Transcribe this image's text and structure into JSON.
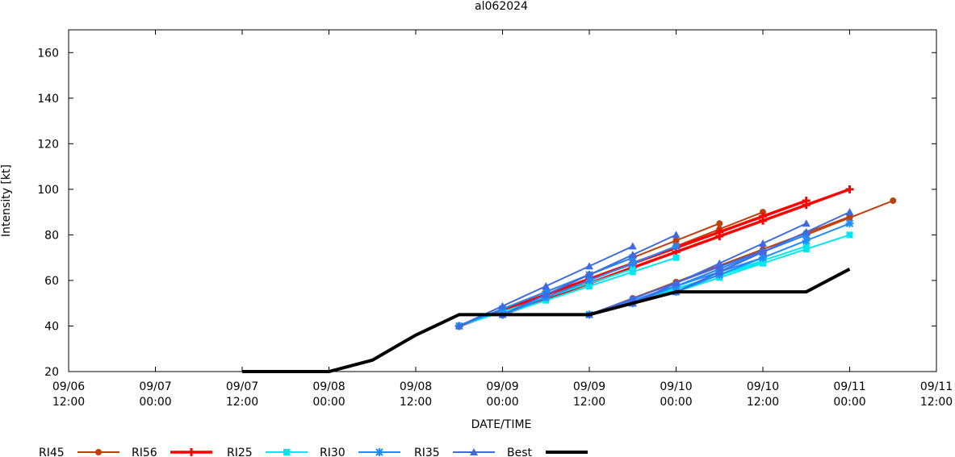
{
  "chart_data": {
    "type": "line",
    "title": "al062024",
    "xlabel": "DATE/TIME",
    "ylabel": "Intensity [kt]",
    "xlim": [
      "09/06 12:00",
      "09/11 12:00"
    ],
    "ylim": [
      20,
      170
    ],
    "yticks": [
      20,
      40,
      60,
      80,
      100,
      120,
      140,
      160
    ],
    "xticks": [
      {
        "date": "09/06",
        "time": "12:00"
      },
      {
        "date": "09/07",
        "time": "00:00"
      },
      {
        "date": "09/07",
        "time": "12:00"
      },
      {
        "date": "09/08",
        "time": "00:00"
      },
      {
        "date": "09/08",
        "time": "12:00"
      },
      {
        "date": "09/09",
        "time": "00:00"
      },
      {
        "date": "09/09",
        "time": "12:00"
      },
      {
        "date": "09/10",
        "time": "00:00"
      },
      {
        "date": "09/10",
        "time": "12:00"
      },
      {
        "date": "09/11",
        "time": "00:00"
      },
      {
        "date": "09/11",
        "time": "12:00"
      }
    ],
    "legend_position": "bottom",
    "series": [
      {
        "name": "RI45",
        "color": "#c0400a",
        "marker": "circle",
        "forecasts": [
          {
            "x": [
              "09/08 18:00",
              "09/10 06:00"
            ],
            "y": [
              40,
              85
            ]
          },
          {
            "x": [
              "09/09 00:00",
              "09/10 12:00"
            ],
            "y": [
              45,
              90
            ]
          },
          {
            "x": [
              "09/09 12:00",
              "09/11 00:00"
            ],
            "y": [
              45,
              88
            ]
          },
          {
            "x": [
              "09/09 18:00",
              "09/11 06:00"
            ],
            "y": [
              50,
              95
            ]
          }
        ]
      },
      {
        "name": "RI56",
        "color": "#ff0000",
        "marker": "plus",
        "forecasts": [
          {
            "x": [
              "09/08 18:00",
              "09/10 18:00"
            ],
            "y": [
              40,
              95
            ]
          },
          {
            "x": [
              "09/09 00:00",
              "09/11 00:00"
            ],
            "y": [
              45,
              100
            ]
          }
        ]
      },
      {
        "name": "RI25",
        "color": "#00e8ee",
        "marker": "square",
        "forecasts": [
          {
            "x": [
              "09/08 18:00",
              "09/09 18:00"
            ],
            "y": [
              40,
              65
            ]
          },
          {
            "x": [
              "09/09 00:00",
              "09/10 00:00"
            ],
            "y": [
              45,
              70
            ]
          },
          {
            "x": [
              "09/09 12:00",
              "09/10 12:00"
            ],
            "y": [
              45,
              68
            ]
          },
          {
            "x": [
              "09/09 18:00",
              "09/10 18:00"
            ],
            "y": [
              50,
              75
            ]
          },
          {
            "x": [
              "09/10 00:00",
              "09/11 00:00"
            ],
            "y": [
              55,
              80
            ]
          }
        ]
      },
      {
        "name": "RI30",
        "color": "#1e8cff",
        "marker": "star",
        "forecasts": [
          {
            "x": [
              "09/08 18:00",
              "09/09 18:00"
            ],
            "y": [
              40,
              70
            ]
          },
          {
            "x": [
              "09/09 00:00",
              "09/10 00:00"
            ],
            "y": [
              45,
              75
            ]
          },
          {
            "x": [
              "09/09 12:00",
              "09/10 12:00"
            ],
            "y": [
              45,
              70
            ]
          },
          {
            "x": [
              "09/09 18:00",
              "09/10 18:00"
            ],
            "y": [
              50,
              80
            ]
          },
          {
            "x": [
              "09/10 00:00",
              "09/11 00:00"
            ],
            "y": [
              55,
              85
            ]
          }
        ]
      },
      {
        "name": "RI35",
        "color": "#4169e1",
        "marker": "triangle",
        "forecasts": [
          {
            "x": [
              "09/08 18:00",
              "09/09 18:00"
            ],
            "y": [
              40,
              75
            ]
          },
          {
            "x": [
              "09/09 00:00",
              "09/10 00:00"
            ],
            "y": [
              45,
              80
            ]
          },
          {
            "x": [
              "09/09 12:00",
              "09/10 12:00"
            ],
            "y": [
              45,
              73
            ]
          },
          {
            "x": [
              "09/09 18:00",
              "09/10 18:00"
            ],
            "y": [
              50,
              85
            ]
          },
          {
            "x": [
              "09/10 00:00",
              "09/11 00:00"
            ],
            "y": [
              55,
              90
            ]
          }
        ]
      },
      {
        "name": "Best",
        "color": "#000000",
        "marker": "none",
        "x": [
          "09/07 12:00",
          "09/07 18:00",
          "09/08 00:00",
          "09/08 06:00",
          "09/08 12:00",
          "09/08 18:00",
          "09/09 00:00",
          "09/09 06:00",
          "09/09 12:00",
          "09/09 18:00",
          "09/10 00:00",
          "09/10 06:00",
          "09/10 12:00",
          "09/10 18:00",
          "09/11 00:00"
        ],
        "y": [
          20,
          20,
          20,
          25,
          36,
          45,
          45,
          45,
          45,
          50,
          55,
          55,
          55,
          55,
          65
        ]
      }
    ]
  }
}
